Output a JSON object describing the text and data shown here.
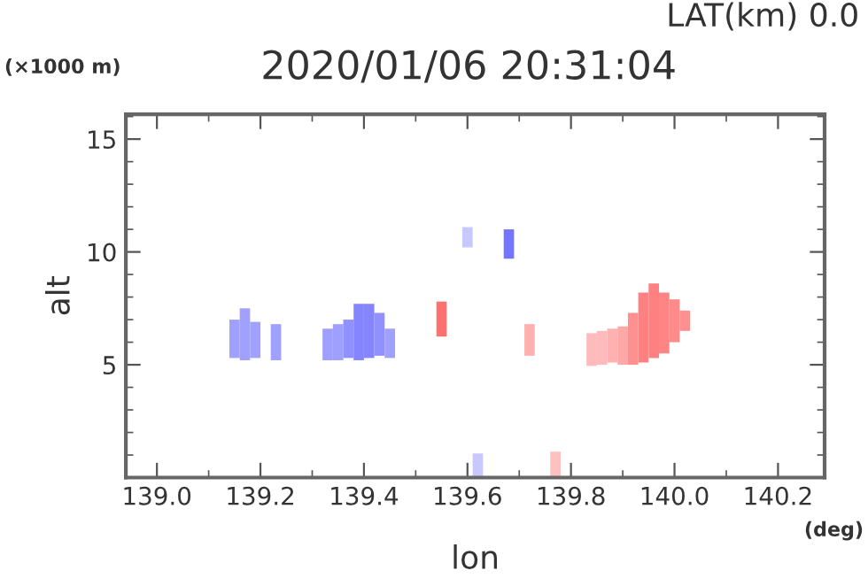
{
  "chart_data": {
    "type": "bar",
    "title": "2020/01/06 20:31:04",
    "subtitle": "LAT(km) 0.0",
    "xlabel": "lon",
    "ylabel": "alt",
    "annotations": [
      "(×1000 m)",
      "(deg)"
    ],
    "x": [
      139.15,
      139.17,
      139.19,
      139.23,
      139.33,
      139.35,
      139.37,
      139.39,
      139.41,
      139.43,
      139.45,
      139.55,
      139.6,
      139.62,
      139.68,
      139.72,
      139.77,
      139.84,
      139.86,
      139.88,
      139.9,
      139.92,
      139.94,
      139.96,
      139.98,
      140.0,
      140.02
    ],
    "base": [
      5.3,
      5.2,
      5.3,
      5.2,
      5.2,
      5.2,
      5.3,
      5.2,
      5.3,
      5.4,
      5.3,
      6.25,
      10.2,
      0,
      9.7,
      5.4,
      0,
      4.95,
      5.0,
      5.1,
      5.0,
      5.0,
      5.1,
      5.3,
      5.5,
      6.0,
      6.5
    ],
    "values": [
      1.7,
      2.3,
      1.6,
      1.6,
      1.4,
      1.6,
      1.7,
      2.5,
      2.4,
      1.9,
      1.3,
      1.55,
      0.9,
      1.07,
      1.3,
      1.4,
      1.15,
      1.45,
      1.5,
      1.5,
      1.7,
      2.3,
      3.1,
      3.3,
      2.7,
      1.9,
      0.9
    ],
    "colors": [
      "#a0a0ff",
      "#a0a0ff",
      "#a0a0ff",
      "#a0a0ff",
      "#9f9fff",
      "#9f9fff",
      "#9090ff",
      "#8585ff",
      "#8585ff",
      "#9090ff",
      "#a0a0ff",
      "#ff7070",
      "#c8c8ff",
      "#c8c8ff",
      "#7575ff",
      "#ffb0b0",
      "#ffc0c0",
      "#ffbbbb",
      "#ffbbbb",
      "#ffb0b0",
      "#ffa8a8",
      "#ff9090",
      "#ff8080",
      "#ff8080",
      "#ff8585",
      "#ff8a8a",
      "#ff9090"
    ],
    "xlim": [
      138.94,
      140.29
    ],
    "ylim": [
      0,
      16.1
    ],
    "xticks": [
      {
        "value": 139.0,
        "label": "139.0"
      },
      {
        "value": 139.2,
        "label": "139.2"
      },
      {
        "value": 139.4,
        "label": "139.4"
      },
      {
        "value": 139.6,
        "label": "139.6"
      },
      {
        "value": 139.8,
        "label": "139.8"
      },
      {
        "value": 140.0,
        "label": "140.0"
      },
      {
        "value": 140.2,
        "label": "140.2"
      }
    ],
    "yticks": [
      5,
      10,
      15
    ],
    "grid": false
  }
}
